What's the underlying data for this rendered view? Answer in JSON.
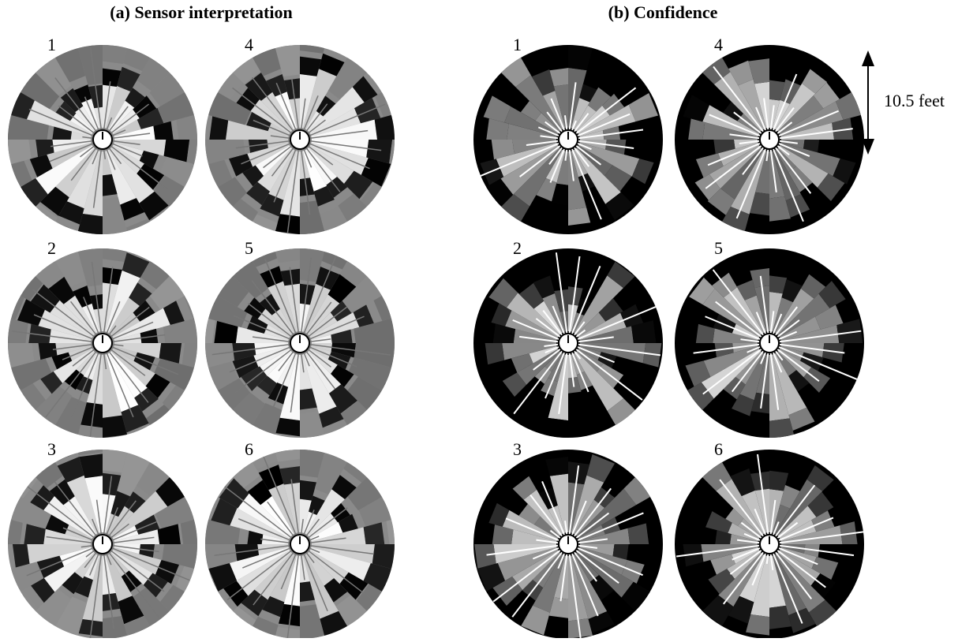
{
  "panels": [
    {
      "title": "(a) Sensor interpretation",
      "plots": [
        {
          "label": "1"
        },
        {
          "label": "4"
        },
        {
          "label": "2"
        },
        {
          "label": "5"
        },
        {
          "label": "3"
        },
        {
          "label": "6"
        }
      ]
    },
    {
      "title": "(b) Confidence",
      "plots": [
        {
          "label": "1"
        },
        {
          "label": "4"
        },
        {
          "label": "2"
        },
        {
          "label": "5"
        },
        {
          "label": "3"
        },
        {
          "label": "6"
        }
      ]
    }
  ],
  "scale_label": "10.5 feet"
}
